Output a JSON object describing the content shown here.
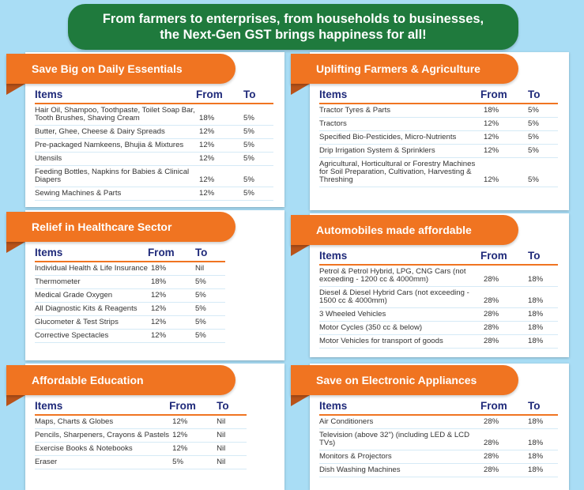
{
  "banner": {
    "line1": "From farmers to enterprises, from households to businesses,",
    "line2": "the Next-Gen GST brings happiness for all!"
  },
  "headers": {
    "items": "Items",
    "from": "From",
    "to": "To"
  },
  "cards": [
    {
      "title": "Save Big on Daily Essentials",
      "rows": [
        [
          "Hair Oil, Shampoo, Toothpaste, Toilet Soap Bar, Tooth Brushes, Shaving Cream",
          "18%",
          "5%"
        ],
        [
          "Butter, Ghee, Cheese & Dairy Spreads",
          "12%",
          "5%"
        ],
        [
          "Pre-packaged Namkeens, Bhujia & Mixtures",
          "12%",
          "5%"
        ],
        [
          "Utensils",
          "12%",
          "5%"
        ],
        [
          "Feeding Bottles, Napkins for Babies & Clinical Diapers",
          "12%",
          "5%"
        ],
        [
          "Sewing Machines & Parts",
          "12%",
          "5%"
        ]
      ]
    },
    {
      "title": "Uplifting Farmers & Agriculture",
      "rows": [
        [
          "Tractor Tyres & Parts",
          "18%",
          "5%"
        ],
        [
          "Tractors",
          "12%",
          "5%"
        ],
        [
          "Specified Bio-Pesticides, Micro-Nutrients",
          "12%",
          "5%"
        ],
        [
          "Drip Irrigation System & Sprinklers",
          "12%",
          "5%"
        ],
        [
          "Agricultural, Horticultural or Forestry Machines for Soil Preparation, Cultivation, Harvesting & Threshing",
          "12%",
          "5%"
        ]
      ]
    },
    {
      "title": "Relief in Healthcare Sector",
      "rows": [
        [
          "Individual Health & Life Insurance",
          "18%",
          "Nil"
        ],
        [
          "Thermometer",
          "18%",
          "5%"
        ],
        [
          "Medical Grade Oxygen",
          "12%",
          "5%"
        ],
        [
          "All Diagnostic Kits & Reagents",
          "12%",
          "5%"
        ],
        [
          "Glucometer & Test Strips",
          "12%",
          "5%"
        ],
        [
          "Corrective Spectacles",
          "12%",
          "5%"
        ]
      ]
    },
    {
      "title": "Automobiles made affordable",
      "rows": [
        [
          "Petrol & Petrol Hybrid, LPG, CNG Cars (not exceeding - 1200 cc & 4000mm)",
          "28%",
          "18%"
        ],
        [
          "Diesel & Diesel Hybrid Cars (not exceeding - 1500 cc & 4000mm)",
          "28%",
          "18%"
        ],
        [
          "3 Wheeled Vehicles",
          "28%",
          "18%"
        ],
        [
          "Motor Cycles (350 cc & below)",
          "28%",
          "18%"
        ],
        [
          "Motor Vehicles for transport of goods",
          "28%",
          "18%"
        ]
      ]
    },
    {
      "title": "Affordable Education",
      "rows": [
        [
          "Maps, Charts & Globes",
          "12%",
          "Nil"
        ],
        [
          "Pencils, Sharpeners, Crayons & Pastels",
          "12%",
          "Nil"
        ],
        [
          "Exercise Books & Notebooks",
          "12%",
          "Nil"
        ],
        [
          "Eraser",
          "5%",
          "Nil"
        ]
      ]
    },
    {
      "title": "Save on Electronic Appliances",
      "rows": [
        [
          "Air Conditioners",
          "28%",
          "18%"
        ],
        [
          "Television (above 32\") (including LED & LCD TVs)",
          "28%",
          "18%"
        ],
        [
          "Monitors & Projectors",
          "28%",
          "18%"
        ],
        [
          "Dish Washing Machines",
          "28%",
          "18%"
        ]
      ]
    }
  ]
}
